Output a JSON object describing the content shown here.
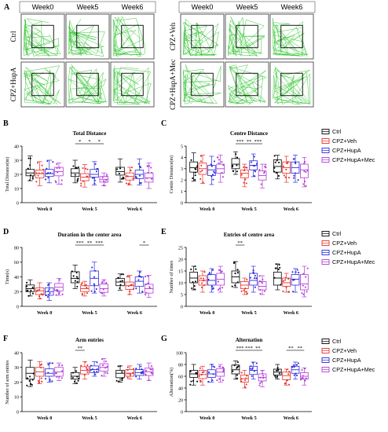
{
  "colors": {
    "Ctrl": "#000000",
    "CPZ+Veh": "#e8302a",
    "CPZ+HupA": "#2a2ae0",
    "CPZ+HupA+Mec": "#b23ad6",
    "track": "#38c838"
  },
  "legend": [
    "Ctrl",
    "CPZ+Veh",
    "CPZ+HupA",
    "CPZ+HupA+Mec"
  ],
  "panel_a": {
    "letter": "A",
    "weeks": [
      "Week0",
      "Week5",
      "Week6"
    ],
    "left_rows": [
      "Ctrl",
      "CPZ+HupA"
    ],
    "right_rows": [
      "CPZ+Veh",
      "CPZ+HupA+Mec"
    ]
  },
  "chart_data": [
    {
      "id": "B",
      "type": "box",
      "title": "Total Distance",
      "ylabel": "Total Distance(m)",
      "xlabel": "",
      "categories": [
        "Week 0",
        "Week 5",
        "Week 6"
      ],
      "ylim": [
        0,
        40
      ],
      "yticks": [
        0,
        10,
        20,
        30,
        40
      ],
      "series": [
        {
          "name": "Ctrl",
          "groups": [
            [
              15.5,
              19,
              21,
              23.5,
              33
            ],
            [
              14,
              18.5,
              21,
              24,
              30
            ],
            [
              14.5,
              19.5,
              22,
              25,
              31
            ]
          ]
        },
        {
          "name": "CPZ+Veh",
          "groups": [
            [
              12,
              17.5,
              20.5,
              23,
              29
            ],
            [
              11,
              15.5,
              18,
              20.5,
              27
            ],
            [
              12.5,
              16,
              18.5,
              21,
              25
            ]
          ]
        },
        {
          "name": "CPZ+HupA",
          "groups": [
            [
              14,
              18.5,
              20.5,
              23.5,
              30
            ],
            [
              12.5,
              18,
              20,
              23.5,
              29
            ],
            [
              12.5,
              17,
              20,
              23,
              31
            ]
          ]
        },
        {
          "name": "CPZ+HupA+Mec",
          "groups": [
            [
              13,
              19,
              22,
              25,
              28
            ],
            [
              12,
              14.5,
              16.5,
              18.5,
              21
            ],
            [
              10,
              14.5,
              17.5,
              21,
              28
            ]
          ]
        }
      ],
      "sig": [
        {
          "cat": 1,
          "from": 0,
          "to": 1,
          "text": "*"
        },
        {
          "cat": 1,
          "from": 1,
          "to": 2,
          "text": "*"
        },
        {
          "cat": 1,
          "from": 2,
          "to": 3,
          "text": "*"
        }
      ]
    },
    {
      "id": "C",
      "type": "box",
      "title": "Centre Distance",
      "ylabel": "Centre Distance(m)",
      "xlabel": "",
      "categories": [
        "Week 0",
        "Week 5",
        "Week 6"
      ],
      "ylim": [
        0,
        5
      ],
      "yticks": [
        0,
        1,
        2,
        3,
        4,
        5
      ],
      "series": [
        {
          "name": "Ctrl",
          "groups": [
            [
              1.9,
              2.7,
              3.1,
              3.6,
              4.4
            ],
            [
              2.5,
              3,
              3.4,
              3.9,
              4.5
            ],
            [
              2.1,
              2.7,
              3.2,
              3.8,
              4.2
            ]
          ]
        },
        {
          "name": "CPZ+Veh",
          "groups": [
            [
              1.7,
              2.5,
              3,
              3.5,
              4.2
            ],
            [
              1.4,
              2.2,
              2.6,
              2.9,
              3.4
            ],
            [
              1.8,
              2.6,
              3.1,
              3.6,
              4.1
            ]
          ]
        },
        {
          "name": "CPZ+HupA",
          "groups": [
            [
              1.6,
              2.4,
              2.9,
              3.3,
              4.1
            ],
            [
              2.3,
              2.9,
              3.3,
              3.7,
              4.3
            ],
            [
              1.8,
              2.6,
              3.1,
              3.6,
              4.2
            ]
          ]
        },
        {
          "name": "CPZ+HupA+Mec",
          "groups": [
            [
              1.8,
              2.6,
              3,
              3.4,
              4.2
            ],
            [
              1.3,
              2,
              2.4,
              2.8,
              3.4
            ],
            [
              1.4,
              2.2,
              2.9,
              3.4,
              4
            ]
          ]
        }
      ],
      "sig": [
        {
          "cat": 1,
          "from": 0,
          "to": 1,
          "text": "***"
        },
        {
          "cat": 1,
          "from": 1,
          "to": 2,
          "text": "**"
        },
        {
          "cat": 1,
          "from": 2,
          "to": 3,
          "text": "***"
        }
      ]
    },
    {
      "id": "D",
      "type": "box",
      "title": "Duration in the center area",
      "ylabel": "Time(s)",
      "xlabel": "",
      "categories": [
        "Week 0",
        "Week 5",
        "Week 6"
      ],
      "ylim": [
        0,
        80
      ],
      "yticks": [
        0,
        20,
        40,
        60,
        80
      ],
      "series": [
        {
          "name": "Ctrl",
          "groups": [
            [
              14,
              20,
              24,
              29,
              36
            ],
            [
              24,
              32,
              38,
              47,
              56
            ],
            [
              22,
              28,
              33,
              38,
              44
            ]
          ]
        },
        {
          "name": "CPZ+Veh",
          "groups": [
            [
              10,
              16,
              21,
              25,
              32
            ],
            [
              14,
              20,
              24,
              28,
              34
            ],
            [
              16,
              23,
              28,
              33,
              42
            ]
          ]
        },
        {
          "name": "CPZ+HupA",
          "groups": [
            [
              8,
              15,
              20,
              25,
              32
            ],
            [
              18,
              28,
              38,
              48,
              60
            ],
            [
              18,
              27,
              34,
              40,
              48
            ]
          ]
        },
        {
          "name": "CPZ+HupA+Mec",
          "groups": [
            [
              15,
              21,
              26,
              31,
              38
            ],
            [
              14,
              19,
              24,
              30,
              36
            ],
            [
              12,
              18,
              24,
              30,
              42
            ]
          ]
        }
      ],
      "sig": [
        {
          "cat": 1,
          "from": 0,
          "to": 1,
          "text": "***"
        },
        {
          "cat": 1,
          "from": 1,
          "to": 2,
          "text": "**"
        },
        {
          "cat": 1,
          "from": 2,
          "to": 3,
          "text": "***"
        },
        {
          "cat": 2,
          "from": 2,
          "to": 3,
          "text": "*"
        }
      ]
    },
    {
      "id": "E",
      "type": "box",
      "title": "Entries of centre area",
      "ylabel": "Number of times",
      "xlabel": "",
      "categories": [
        "Week 0",
        "Week 5",
        "Week 6"
      ],
      "ylim": [
        0,
        25
      ],
      "yticks": [
        0,
        5,
        10,
        15,
        20,
        25
      ],
      "series": [
        {
          "name": "Ctrl",
          "groups": [
            [
              7,
              10,
              12,
              14.5,
              17
            ],
            [
              8,
              10,
              12.5,
              15,
              19
            ],
            [
              7,
              9,
              12,
              14.5,
              18
            ]
          ]
        },
        {
          "name": "CPZ+Veh",
          "groups": [
            [
              6,
              9,
              11,
              13,
              15
            ],
            [
              5,
              7.5,
              9,
              10.5,
              12
            ],
            [
              6,
              8.5,
              10,
              12,
              14
            ]
          ]
        },
        {
          "name": "CPZ+HupA",
          "groups": [
            [
              6,
              9,
              11,
              13.5,
              16
            ],
            [
              6,
              9,
              11,
              14,
              17
            ],
            [
              6,
              9,
              11.5,
              13.5,
              16
            ]
          ]
        },
        {
          "name": "CPZ+HupA+Mec",
          "groups": [
            [
              6,
              9,
              11.5,
              14,
              17
            ],
            [
              5,
              7,
              8.5,
              10.5,
              13
            ],
            [
              4,
              7,
              9.5,
              13.5,
              17
            ]
          ]
        }
      ],
      "sig": [
        {
          "cat": 1,
          "from": 0,
          "to": 1,
          "text": "**"
        }
      ]
    },
    {
      "id": "F",
      "type": "box",
      "title": "Arm entries",
      "ylabel": "Number of arm entries",
      "xlabel": "",
      "categories": [
        "Week 0",
        "Week 5",
        "Week 6"
      ],
      "ylim": [
        0,
        40
      ],
      "yticks": [
        0,
        10,
        20,
        30,
        40
      ],
      "series": [
        {
          "name": "Ctrl",
          "groups": [
            [
              17,
              22,
              26,
              30,
              35
            ],
            [
              19,
              22,
              24,
              26.5,
              30
            ],
            [
              20,
              23,
              26,
              28,
              31
            ]
          ]
        },
        {
          "name": "CPZ+Veh",
          "groups": [
            [
              19,
              24,
              27,
              30,
              34
            ],
            [
              22,
              25.5,
              28,
              30.5,
              34
            ],
            [
              22,
              24,
              26,
              28.5,
              31
            ]
          ]
        },
        {
          "name": "CPZ+HupA",
          "groups": [
            [
              20,
              24,
              26,
              29,
              33
            ],
            [
              24,
              26.5,
              28.5,
              31,
              34
            ],
            [
              22,
              24.5,
              26.5,
              28.5,
              32
            ]
          ]
        },
        {
          "name": "CPZ+HupA+Mec",
          "groups": [
            [
              21,
              24,
              27,
              30,
              33
            ],
            [
              24,
              27.5,
              30,
              32.5,
              36
            ],
            [
              21,
              24.5,
              27,
              29.5,
              33
            ]
          ]
        }
      ],
      "sig": [
        {
          "cat": 1,
          "from": 0,
          "to": 1,
          "text": "**"
        }
      ]
    },
    {
      "id": "G",
      "type": "box",
      "title": "Alternation",
      "ylabel": "Alternation(%)",
      "xlabel": "",
      "categories": [
        "Week 0",
        "Week 5",
        "Week 6"
      ],
      "ylim": [
        0,
        100
      ],
      "yticks": [
        0,
        20,
        40,
        60,
        80,
        100
      ],
      "series": [
        {
          "name": "Ctrl",
          "groups": [
            [
              45,
              58,
              64,
              70,
              80
            ],
            [
              55,
              64,
              71,
              79,
              86
            ],
            [
              55,
              62,
              67,
              72,
              80
            ]
          ]
        },
        {
          "name": "CPZ+Veh",
          "groups": [
            [
              45,
              56,
              63,
              70,
              77
            ],
            [
              40,
              50,
              56,
              62,
              70
            ],
            [
              45,
              54,
              61,
              67,
              72
            ]
          ]
        },
        {
          "name": "CPZ+HupA",
          "groups": [
            [
              50,
              58,
              64,
              71,
              80
            ],
            [
              55,
              63,
              70,
              77,
              84
            ],
            [
              55,
              65,
              71,
              77,
              84
            ]
          ]
        },
        {
          "name": "CPZ+HupA+Mec",
          "groups": [
            [
              50,
              60,
              67,
              73,
              80
            ],
            [
              42,
              52,
              58,
              64,
              70
            ],
            [
              45,
              55,
              60,
              66,
              74
            ]
          ]
        }
      ],
      "sig": [
        {
          "cat": 1,
          "from": 0,
          "to": 1,
          "text": "***"
        },
        {
          "cat": 1,
          "from": 1,
          "to": 2,
          "text": "***"
        },
        {
          "cat": 1,
          "from": 2,
          "to": 3,
          "text": "**"
        },
        {
          "cat": 2,
          "from": 1,
          "to": 2,
          "text": "**"
        },
        {
          "cat": 2,
          "from": 2,
          "to": 3,
          "text": "**"
        }
      ]
    }
  ]
}
